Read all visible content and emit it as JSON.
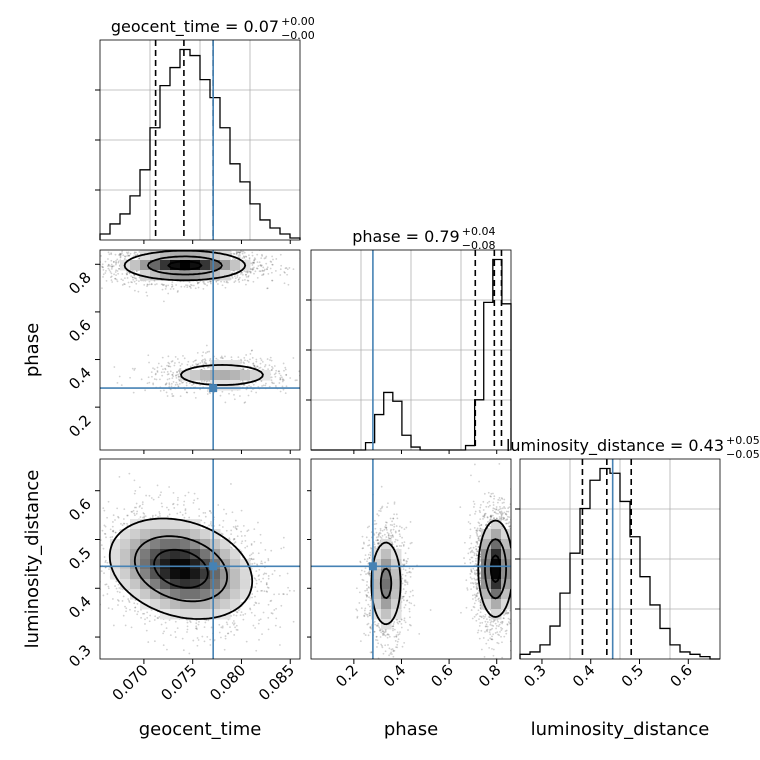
{
  "chart_data": {
    "type": "corner",
    "parameters": [
      "geocent_time",
      "phase",
      "luminosity_distance"
    ],
    "truth": {
      "geocent_time": 0.0771,
      "phase": 0.28,
      "luminosity_distance": 0.445
    },
    "truth_color": "#4682b4",
    "marginals": [
      {
        "parameter": "geocent_time",
        "title": "geocent_time = 0.07",
        "title_sup": "+0.00",
        "title_sub": "−0.00",
        "range": [
          0.0655,
          0.086
        ],
        "bin_counts": [
          0.3,
          0.8,
          1.3,
          2.2,
          3.5,
          5.6,
          7.7,
          8.6,
          9.5,
          9.2,
          8.0,
          7.1,
          5.6,
          3.8,
          2.9,
          1.8,
          1.0,
          0.6,
          0.3,
          0.1
        ],
        "quantiles": [
          0.0712,
          0.0741,
          0.0771
        ]
      },
      {
        "parameter": "phase",
        "title": "phase = 0.79",
        "title_sup": "+0.04",
        "title_sub": "−0.08",
        "range": [
          0.02,
          0.86
        ],
        "bin_counts": [
          0,
          0,
          0,
          0,
          0,
          0,
          0.5,
          2.4,
          3.9,
          3.3,
          1.0,
          0.2,
          0,
          0,
          0,
          0,
          0,
          0.3,
          3.4,
          10.0,
          12.9,
          9.9
        ],
        "quantiles": [
          0.71,
          0.79,
          0.82
        ]
      },
      {
        "parameter": "luminosity_distance",
        "title": "luminosity_distance = 0.43",
        "title_sup": "+0.05",
        "title_sub": "−0.05",
        "range": [
          0.255,
          0.665
        ],
        "bin_counts": [
          0.2,
          0.3,
          0.6,
          1.4,
          2.8,
          4.5,
          6.4,
          7.6,
          8.1,
          7.9,
          6.7,
          5.2,
          3.5,
          2.3,
          1.3,
          0.6,
          0.3,
          0.2,
          0.1,
          0
        ],
        "quantiles": [
          0.383,
          0.433,
          0.483
        ]
      }
    ],
    "density_panels": [
      {
        "x": "geocent_time",
        "y": "phase"
      },
      {
        "x": "geocent_time",
        "y": "luminosity_distance"
      },
      {
        "x": "phase",
        "y": "luminosity_distance"
      }
    ],
    "ticks": {
      "geocent_time": [
        "0.070",
        "0.075",
        "0.080",
        "0.085"
      ],
      "phase": [
        "0.2",
        "0.4",
        "0.6",
        "0.8"
      ],
      "luminosity_distance": [
        "0.3",
        "0.4",
        "0.5",
        "0.6"
      ]
    },
    "axis_labels": {
      "x": [
        "geocent_time",
        "phase",
        "luminosity_distance"
      ],
      "y": [
        "phase",
        "luminosity_distance"
      ]
    },
    "grid": true
  }
}
